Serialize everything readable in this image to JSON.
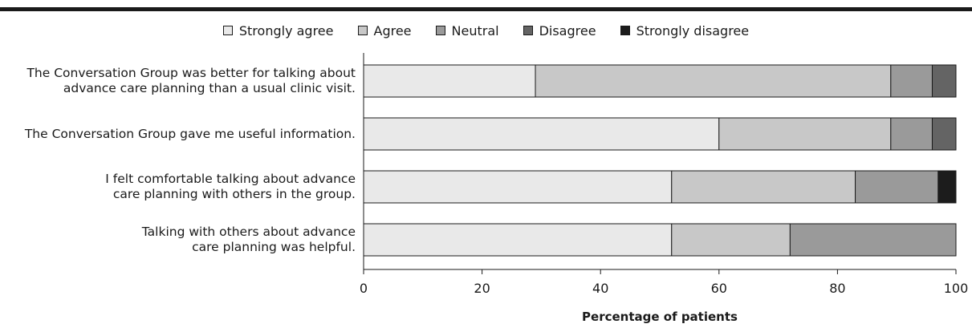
{
  "chart_data": {
    "type": "bar",
    "orientation": "horizontal",
    "stacked": true,
    "title": "",
    "xlabel": "Percentage of patients",
    "ylabel": "",
    "xlim": [
      0,
      100
    ],
    "xticks": [
      "0",
      "20",
      "40",
      "60",
      "80",
      "100"
    ],
    "grid": false,
    "legend_position": "top-center",
    "categories": [
      "The Conversation Group was better for talking about advance care planning than a usual clinic visit.",
      "The Conversation Group gave me useful information.",
      "I felt comfortable talking about advance care planning with others in the group.",
      "Talking with others about advance care planning was helpful."
    ],
    "series": [
      {
        "name": "Strongly agree",
        "color": "#e9e9e9",
        "values": [
          29,
          60,
          52,
          52
        ]
      },
      {
        "name": "Agree",
        "color": "#c8c8c8",
        "values": [
          60,
          29,
          31,
          20
        ]
      },
      {
        "name": "Neutral",
        "color": "#9a9a9a",
        "values": [
          7,
          7,
          14,
          28
        ]
      },
      {
        "name": "Disagree",
        "color": "#646464",
        "values": [
          4,
          4,
          0,
          0
        ]
      },
      {
        "name": "Strongly disagree",
        "color": "#1c1c1c",
        "values": [
          0,
          0,
          3,
          0
        ]
      }
    ]
  },
  "category_lines": [
    [
      "The Conversation Group was better for talking about",
      "advance care planning than a usual clinic visit."
    ],
    [
      "The Conversation Group gave me useful information."
    ],
    [
      "I felt comfortable talking about advance",
      "care planning with others in the group."
    ],
    [
      "Talking with others about advance",
      "care planning was helpful."
    ]
  ]
}
